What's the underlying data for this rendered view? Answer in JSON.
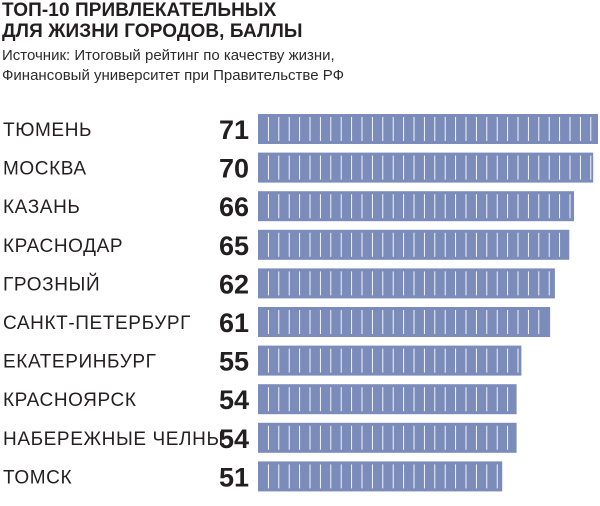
{
  "header": {
    "title_line1": "ТОП-10 ПРИВЛЕКАТЕЛЬНЫХ",
    "title_line2": "ДЛЯ ЖИЗНИ ГОРОДОВ, БАЛЛЫ",
    "source_line1": "Источник: Итоговый рейтинг по качеству жизни,",
    "source_line2": "Финансовый университет при Правительстве РФ"
  },
  "colors": {
    "bar": "#7c8cba",
    "segment_divider": "#ffffff",
    "text": "#231f20"
  },
  "chart_data": {
    "type": "bar",
    "orientation": "horizontal",
    "categories": [
      "ТЮМЕНЬ",
      "МОСКВА",
      "КАЗАНЬ",
      "КРАСНОДАР",
      "ГРОЗНЫЙ",
      "САНКТ-ПЕТЕРБУРГ",
      "ЕКАТЕРИНБУРГ",
      "КРАСНОЯРСК",
      "НАБЕРЕЖНЫЕ ЧЕЛНЫ",
      "ТОМСК"
    ],
    "values": [
      71,
      70,
      66,
      65,
      62,
      61,
      55,
      54,
      54,
      51
    ],
    "value_labels": [
      "71",
      "70",
      "66",
      "65",
      "62",
      "61",
      "55",
      "54",
      "54",
      "51"
    ],
    "xlim": [
      0,
      71
    ],
    "grid": false,
    "legend": "none"
  }
}
